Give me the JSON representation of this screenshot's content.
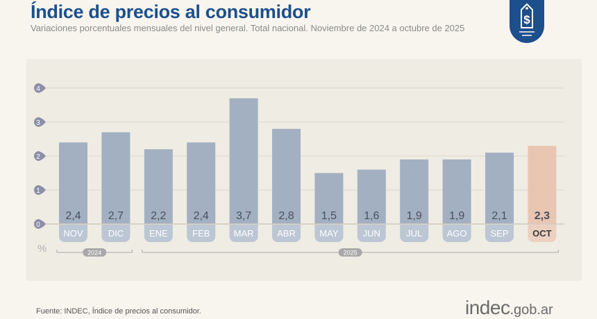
{
  "header": {
    "title": "Índice de precios al consumidor",
    "subtitle": "Variaciones porcentuales mensuales del nivel general. Total nacional. Noviembre de 2024 a octubre de 2025"
  },
  "footer": {
    "source": "Fuente: INDEC, Índice de precios al consumidor.",
    "brand_main": "indec",
    "brand_suffix": ".gob.ar"
  },
  "logo": {
    "icon": "price-tag-dollar-icon",
    "color": "#1d4f8c"
  },
  "chart_data": {
    "type": "bar",
    "categories": [
      "NOV",
      "DIC",
      "ENE",
      "FEB",
      "MAR",
      "ABR",
      "MAY",
      "JUN",
      "JUL",
      "AGO",
      "SEP",
      "OCT"
    ],
    "values": [
      2.4,
      2.7,
      2.2,
      2.4,
      3.7,
      2.8,
      1.5,
      1.6,
      1.9,
      1.9,
      2.1,
      2.3
    ],
    "data_labels": [
      "2,4",
      "2,7",
      "2,2",
      "2,4",
      "3,7",
      "2,8",
      "1,5",
      "1,6",
      "1,9",
      "1,9",
      "2,1",
      "2,3"
    ],
    "ylabel": "%",
    "yticks": [
      "0",
      "1",
      "2",
      "3",
      "4"
    ],
    "ylim": [
      0,
      4
    ],
    "grid": true,
    "year_groups": [
      {
        "label": "2024",
        "span": [
          "NOV",
          "DIC"
        ]
      },
      {
        "label": "2025",
        "span": [
          "ENE",
          "OCT"
        ]
      }
    ],
    "highlight": "OCT",
    "colors": {
      "bar": "#a3b0c2",
      "highlight": "#e9c6b2",
      "tick_marker": "#8b8fa8"
    }
  }
}
